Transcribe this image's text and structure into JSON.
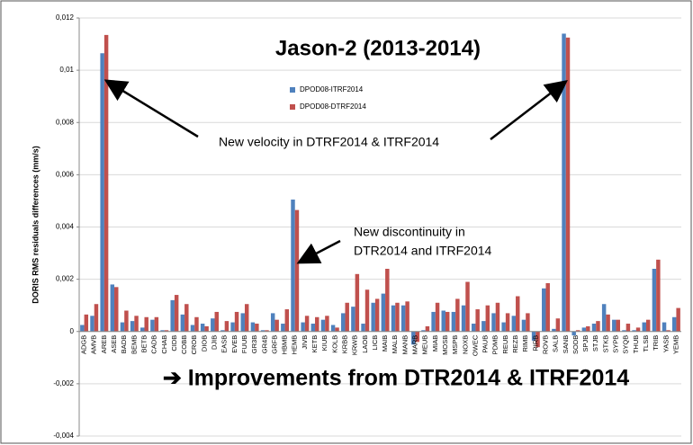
{
  "chart_data": {
    "type": "bar",
    "title": "Jason-2 (2013-2014)",
    "y_label": "DORIS RMS residuals differences (mm/s)",
    "annotations": [
      {
        "lines": [
          "New velocity in DTRF2014 & ITRF2014"
        ]
      },
      {
        "lines": [
          "New discontinuity in",
          "DTR2014 and ITRF2014"
        ]
      }
    ],
    "footer": "➔ Improvements from DTR2014 & ITRF2014",
    "categories": [
      "ADGB",
      "AMVB",
      "AREB",
      "ASEB",
      "BADB",
      "BEMB",
      "BETB",
      "CADB",
      "CHAB",
      "CIDB",
      "COBB",
      "CROB",
      "DIOB",
      "DJIB",
      "EASB",
      "EVEB",
      "FUUB",
      "GR3B",
      "GR4B",
      "GRFB",
      "HBMB",
      "HEMB",
      "JIVB",
      "KETB",
      "KIUB",
      "KOLB",
      "KRBB",
      "KRWB",
      "LAOB",
      "LICB",
      "MAIB",
      "MALB",
      "MANB",
      "MARB",
      "MEUB",
      "MIAB",
      "MOSB",
      "MSPB",
      "NOXB",
      "OWEC",
      "PAUB",
      "PDMB",
      "REUB",
      "REZB",
      "RIMB",
      "RIRB",
      "ROVB",
      "SALB",
      "SANB",
      "SODB",
      "SPJB",
      "STJB",
      "STKB",
      "SYPB",
      "SYQB",
      "THUB",
      "TLSB",
      "TRIB",
      "YASB",
      "YEMB"
    ],
    "series": [
      {
        "name": "DPOD08-ITRF2014",
        "color": "#4f81bd",
        "values": [
          0.00025,
          0.0006,
          0.01065,
          0.0018,
          0.00035,
          0.0004,
          0.00015,
          0.00045,
          5e-05,
          0.0012,
          0.00065,
          0.00025,
          0.0003,
          0.0005,
          5e-05,
          0.00035,
          0.0007,
          0.00035,
          5e-05,
          0.0007,
          0.0003,
          0.00505,
          0.00035,
          0.0003,
          0.00045,
          0.00025,
          0.0007,
          0.00095,
          0.0003,
          0.0011,
          0.00145,
          0.001,
          0.001,
          -0.0005,
          5e-05,
          0.00075,
          0.0008,
          0.00075,
          0.001,
          0.0003,
          0.0004,
          0.0007,
          0.00035,
          0.0006,
          0.00045,
          -0.00035,
          0.00165,
          0.0001,
          0.0114,
          -0.00015,
          0.00015,
          0.0003,
          0.00105,
          0.00045,
          5e-05,
          5e-05,
          0.00035,
          0.0024,
          0.00035,
          0.00055
        ]
      },
      {
        "name": "DPOD08-DTRF2014",
        "color": "#c0504d",
        "values": [
          0.00065,
          0.00105,
          0.01135,
          0.0017,
          0.0008,
          0.0006,
          0.00055,
          0.00055,
          5e-05,
          0.0014,
          0.00105,
          0.00055,
          0.0002,
          0.00075,
          0.0004,
          0.00075,
          0.00105,
          0.0003,
          5e-05,
          0.00045,
          0.00085,
          0.00465,
          0.0006,
          0.00055,
          0.0006,
          0.00015,
          0.0011,
          0.0022,
          0.0016,
          0.00125,
          0.0024,
          0.0011,
          0.00115,
          -0.0004,
          0.0002,
          0.0011,
          0.00075,
          0.00125,
          0.0019,
          0.00085,
          0.001,
          0.0011,
          0.0007,
          0.00135,
          0.0007,
          -0.0006,
          0.00185,
          0.0005,
          0.01125,
          5e-05,
          0.0002,
          0.0004,
          0.00065,
          0.00045,
          0.0003,
          0.00015,
          0.00045,
          0.00275,
          5e-05,
          0.0009
        ]
      }
    ],
    "ylim": [
      -0.004,
      0.012
    ],
    "yticks": [
      {
        "value": -0.004,
        "label": "-0,004"
      },
      {
        "value": -0.002,
        "label": "-0,002"
      },
      0,
      {
        "value": 0.002,
        "label": "0,002"
      },
      {
        "value": 0.004,
        "label": "0,004"
      },
      {
        "value": 0.006,
        "label": "0,006"
      },
      {
        "value": 0.008,
        "label": "0,008"
      },
      {
        "value": 0.01,
        "label": "0,01"
      },
      {
        "value": 0.012,
        "label": "0,012"
      }
    ],
    "grid": true
  }
}
